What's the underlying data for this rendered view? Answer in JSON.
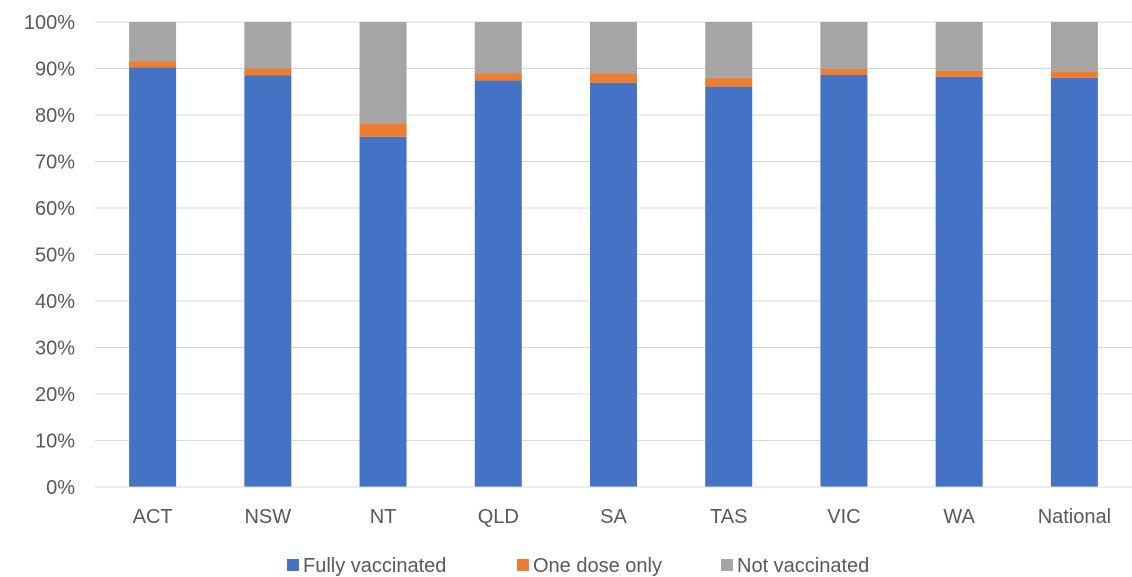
{
  "chart_data": {
    "type": "bar",
    "stacked": true,
    "categories": [
      "ACT",
      "NSW",
      "NT",
      "QLD",
      "SA",
      "TAS",
      "VIC",
      "WA",
      "National"
    ],
    "series": [
      {
        "name": "Fully vaccinated",
        "color": "#4472C4",
        "values": [
          90.2,
          88.5,
          75.3,
          87.4,
          86.9,
          86.1,
          88.6,
          88.2,
          88.0
        ]
      },
      {
        "name": "One dose only",
        "color": "#ED7D31",
        "values": [
          1.4,
          1.5,
          2.9,
          1.6,
          2.0,
          1.9,
          1.3,
          1.3,
          1.4
        ]
      },
      {
        "name": "Not vaccinated",
        "color": "#A5A5A5",
        "values": [
          8.4,
          10.0,
          21.8,
          11.0,
          11.1,
          12.0,
          10.1,
          10.5,
          10.6
        ]
      }
    ],
    "yticks": [
      "0%",
      "10%",
      "20%",
      "30%",
      "40%",
      "50%",
      "60%",
      "70%",
      "80%",
      "90%",
      "100%"
    ],
    "ylim": [
      0,
      100
    ],
    "grid": true,
    "legend": "bottom"
  }
}
